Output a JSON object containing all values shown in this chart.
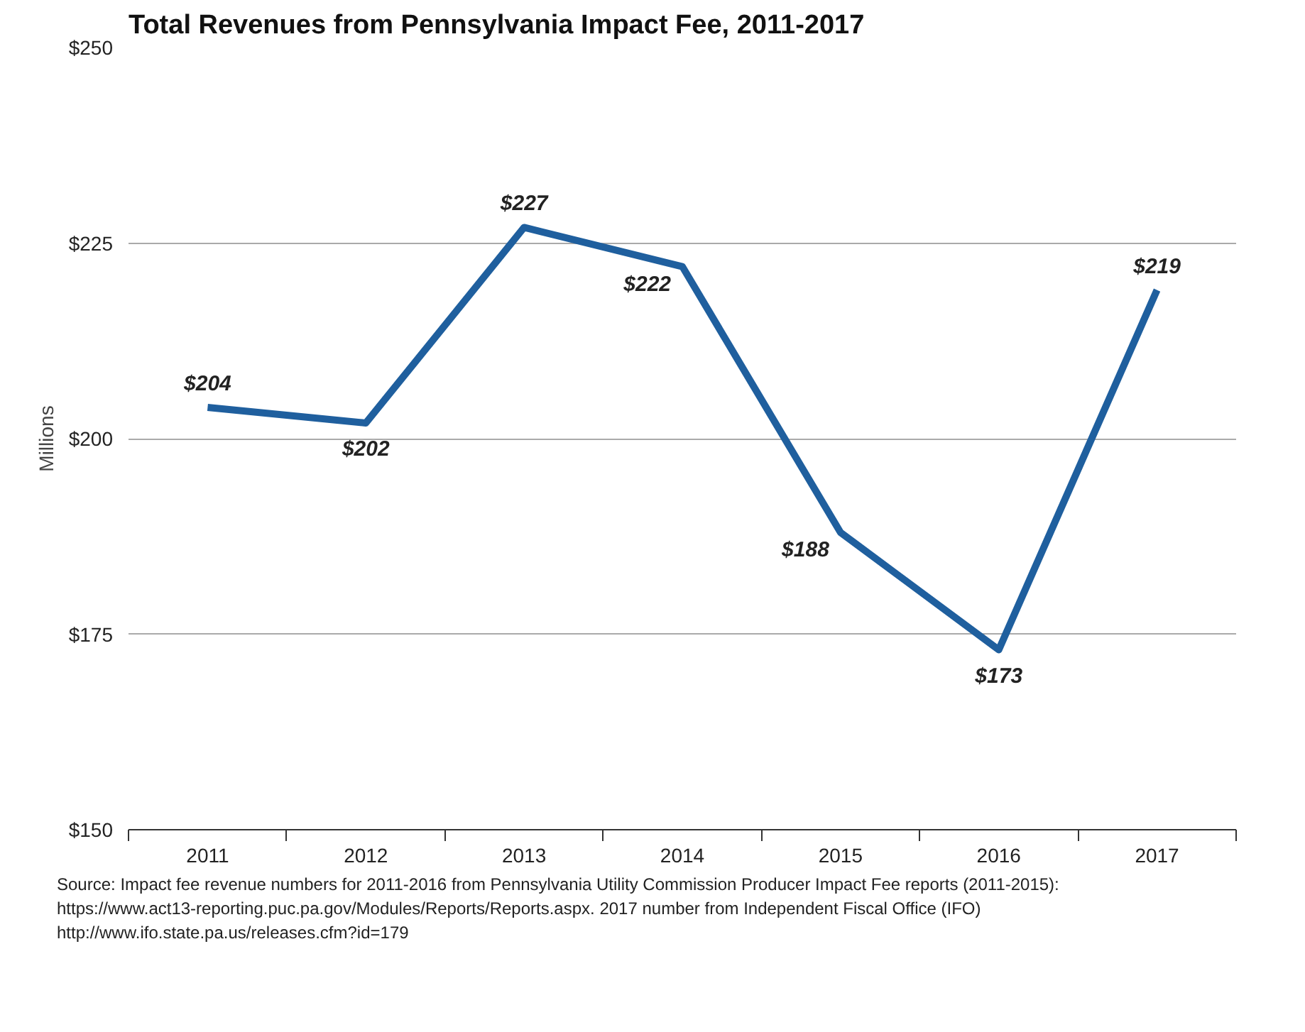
{
  "chart_data": {
    "type": "line",
    "title": "Total Revenues from Pennsylvania Impact Fee, 2011-2017",
    "ylabel": "Millions",
    "categories": [
      "2011",
      "2012",
      "2013",
      "2014",
      "2015",
      "2016",
      "2017"
    ],
    "series": [
      {
        "color": "#1f5f9e",
        "values": [
          204,
          202,
          227,
          222,
          188,
          173,
          219
        ],
        "value_labels": [
          "$204",
          "$202",
          "$227",
          "$222",
          "$188",
          "$173",
          "$219"
        ]
      }
    ],
    "ylim": [
      150,
      250
    ],
    "yticks": [
      {
        "value": 150,
        "label": "$150"
      },
      {
        "value": 175,
        "label": "$175"
      },
      {
        "value": 200,
        "label": "$200"
      },
      {
        "value": 225,
        "label": "$225"
      },
      {
        "value": 250,
        "label": "$250"
      }
    ],
    "grid": "y",
    "marker": "none",
    "line_style": "solid",
    "annotations": [
      "Source: Impact fee revenue numbers for 2011-2016 from Pennsylvania Utility Commission Producer Impact Fee reports (2011-2015):",
      "https://www.act13-reporting.puc.pa.gov/Modules/Reports/Reports.aspx. 2017 number from Independent Fiscal Office (IFO)",
      "http://www.ifo.state.pa.us/releases.cfm?id=179"
    ]
  }
}
